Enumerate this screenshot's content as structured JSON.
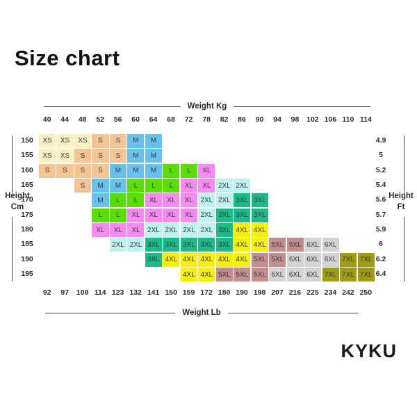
{
  "title": "Size chart",
  "brand": "KYKU",
  "chart_data": {
    "type": "heatmap",
    "title": "Size chart",
    "top_axis_label": "Weight Kg",
    "bottom_axis_label": "Weight Lb",
    "left_axis_label": "Height\nCm",
    "right_axis_label": "Height\nFt",
    "weight_kg": [
      40,
      44,
      48,
      52,
      56,
      60,
      64,
      68,
      72,
      78,
      82,
      86,
      90,
      94,
      98,
      102,
      106,
      110,
      114
    ],
    "weight_lb": [
      92,
      97,
      108,
      114,
      123,
      132,
      141,
      150,
      159,
      172,
      180,
      190,
      198,
      207,
      216,
      225,
      234,
      242,
      250
    ],
    "height_cm": [
      150,
      155,
      160,
      165,
      170,
      175,
      180,
      185,
      190,
      195
    ],
    "height_ft": [
      "4.9",
      "5",
      "5.2",
      "5.4",
      "5.6",
      "5.7",
      "5.9",
      "6",
      "6.2",
      "6.4"
    ],
    "size_colors": {
      "XS": "#FAF2C3",
      "S": "#F5C493",
      "M": "#66C1EF",
      "L": "#5ADC05",
      "XL": "#F78BF2",
      "2XL": "#BEF3F0",
      "3XL": "#1CB98A",
      "4XL": "#F8F007",
      "5XL": "#C48D8D",
      "6XL": "#D3D3D4",
      "7XL": "#9F9C12"
    },
    "rows": [
      [
        "XS",
        "XS",
        "XS",
        "S",
        "S",
        "M",
        "M",
        null,
        null,
        null,
        null,
        null,
        null,
        null,
        null,
        null,
        null,
        null,
        null
      ],
      [
        "XS",
        "XS",
        "S",
        "S",
        "S",
        "M",
        "M",
        null,
        null,
        null,
        null,
        null,
        null,
        null,
        null,
        null,
        null,
        null,
        null
      ],
      [
        "S",
        "S",
        "S",
        "S",
        "M",
        "M",
        "M",
        "L",
        "L",
        "XL",
        null,
        null,
        null,
        null,
        null,
        null,
        null,
        null,
        null
      ],
      [
        null,
        null,
        "S",
        "M",
        "M",
        "L",
        "L",
        "L",
        "XL",
        "XL",
        "2XL",
        "2XL",
        null,
        null,
        null,
        null,
        null,
        null,
        null
      ],
      [
        null,
        null,
        null,
        "M",
        "L",
        "L",
        "XL",
        "XL",
        "XL",
        "2XL",
        "2XL",
        "3XL",
        "3XL",
        null,
        null,
        null,
        null,
        null,
        null
      ],
      [
        null,
        null,
        null,
        "L",
        "L",
        "XL",
        "XL",
        "XL",
        "XL",
        "2XL",
        "3XL",
        "3XL",
        "3XL",
        null,
        null,
        null,
        null,
        null,
        null
      ],
      [
        null,
        null,
        null,
        "XL",
        "XL",
        "XL",
        "2XL",
        "2XL",
        "2XL",
        "2XL",
        "3XL",
        "4XL",
        "4XL",
        null,
        null,
        null,
        null,
        null,
        null
      ],
      [
        null,
        null,
        null,
        null,
        "2XL",
        "2XL",
        "3XL",
        "3XL",
        "3XL",
        "3XL",
        "3XL",
        "4XL",
        "4XL",
        "5XL",
        "5XL",
        "6XL",
        "6XL",
        null,
        null
      ],
      [
        null,
        null,
        null,
        null,
        null,
        null,
        "3XL",
        "4XL",
        "4XL",
        "4XL",
        "4XL",
        "4XL",
        "5XL",
        "5XL",
        "6XL",
        "6XL",
        "6XL",
        "7XL",
        "7XL"
      ],
      [
        null,
        null,
        null,
        null,
        null,
        null,
        null,
        null,
        "4XL",
        "4XL",
        "5XL",
        "5XL",
        "5XL",
        "6XL",
        "6XL",
        "6XL",
        "7XL",
        "7XL",
        "7XL"
      ]
    ]
  }
}
